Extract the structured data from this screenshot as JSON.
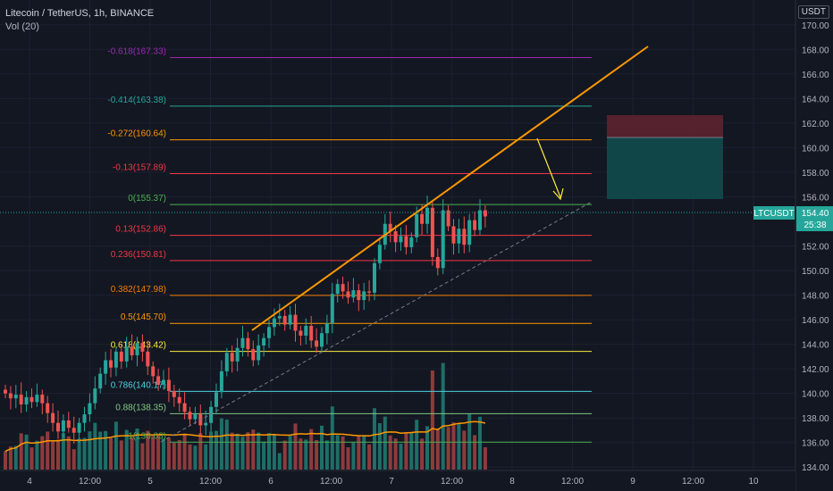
{
  "header": {
    "title": "Litecoin / TetherUS, 1h, BINANCE",
    "indicator": "Vol (20)"
  },
  "price_axis": {
    "unit": "USDT",
    "ticks": [
      "170.00",
      "168.00",
      "166.00",
      "164.00",
      "162.00",
      "160.00",
      "158.00",
      "156.00",
      "152.00",
      "150.00",
      "148.00",
      "146.00",
      "144.00",
      "142.00",
      "140.00",
      "138.00",
      "136.00",
      "134.00"
    ],
    "symbol_badge": "LTCUSDT",
    "last_price": "154.40",
    "countdown": "25:38",
    "badge_color": "#26a69a"
  },
  "time_axis": {
    "ticks": [
      "4",
      "12:00",
      "5",
      "12:00",
      "6",
      "12:00",
      "7",
      "12:00",
      "8",
      "12:00",
      "9",
      "12:00",
      "10"
    ]
  },
  "chart_data": {
    "type": "candlestick",
    "ylim": [
      133.8,
      171
    ],
    "fib_levels": [
      {
        "label": "-0.618(167.33)",
        "ratio": -0.618,
        "price": 167.33,
        "color": "#9c27b0"
      },
      {
        "label": "-0.414(163.38)",
        "ratio": -0.414,
        "price": 163.38,
        "color": "#26a69a"
      },
      {
        "label": "-0.272(160.64)",
        "ratio": -0.272,
        "price": 160.64,
        "color": "#ff9800"
      },
      {
        "label": "-0.13(157.89)",
        "ratio": -0.13,
        "price": 157.89,
        "color": "#f23645"
      },
      {
        "label": "0(155.37)",
        "ratio": 0,
        "price": 155.37,
        "color": "#4caf50"
      },
      {
        "label": "0.13(152.86)",
        "ratio": 0.13,
        "price": 152.86,
        "color": "#f23645"
      },
      {
        "label": "0.236(150.81)",
        "ratio": 0.236,
        "price": 150.81,
        "color": "#f23645"
      },
      {
        "label": "0.382(147.98)",
        "ratio": 0.382,
        "price": 147.98,
        "color": "#f57c00"
      },
      {
        "label": "0.5(145.70)",
        "ratio": 0.5,
        "price": 145.7,
        "color": "#ff9800"
      },
      {
        "label": "0.618(143.42)",
        "ratio": 0.618,
        "price": 143.42,
        "color": "#ffeb3b"
      },
      {
        "label": "0.786(140.17)",
        "ratio": 0.786,
        "price": 140.17,
        "color": "#4dd0e1"
      },
      {
        "label": "0.88(138.35)",
        "ratio": 0.88,
        "price": 138.35,
        "color": "#81c784"
      },
      {
        "label": "1(136.03)",
        "ratio": 1,
        "price": 136.03,
        "color": "#4caf50"
      }
    ],
    "close_prices": [
      140,
      139.6,
      139.9,
      139.1,
      139.7,
      139.3,
      139.9,
      139.2,
      138.4,
      137.6,
      136.9,
      137.8,
      137.2,
      136.8,
      137.6,
      138.3,
      139.2,
      140.4,
      141.6,
      142.7,
      142.1,
      143.4,
      142.6,
      143.8,
      143.1,
      144.1,
      143.4,
      142.2,
      141.4,
      140.7,
      141.1,
      140.2,
      139.7,
      139.2,
      138.5,
      137.9,
      138.3,
      137.4,
      137.6,
      138.9,
      140.1,
      141.8,
      143.3,
      142.6,
      143.7,
      144.5,
      143.6,
      142.7,
      143.9,
      144.5,
      145.4,
      146.1,
      146.3,
      145.6,
      146.4,
      145.1,
      144.7,
      145.5,
      144.3,
      143.8,
      144.9,
      145.7,
      148.1,
      148.9,
      148.3,
      147.8,
      148.4,
      147.6,
      148.3,
      148.2,
      150.6,
      152.1,
      153.8,
      153.2,
      152.3,
      152.8,
      151.9,
      152.7,
      154.6,
      153.8,
      155.1,
      151.1,
      150.2,
      154.9,
      153.6,
      152.2,
      153.4,
      152.1,
      154.1,
      153.3,
      154.9,
      154.4
    ],
    "volume": {
      "label": "Vol (20)",
      "ma_period": 20
    }
  }
}
